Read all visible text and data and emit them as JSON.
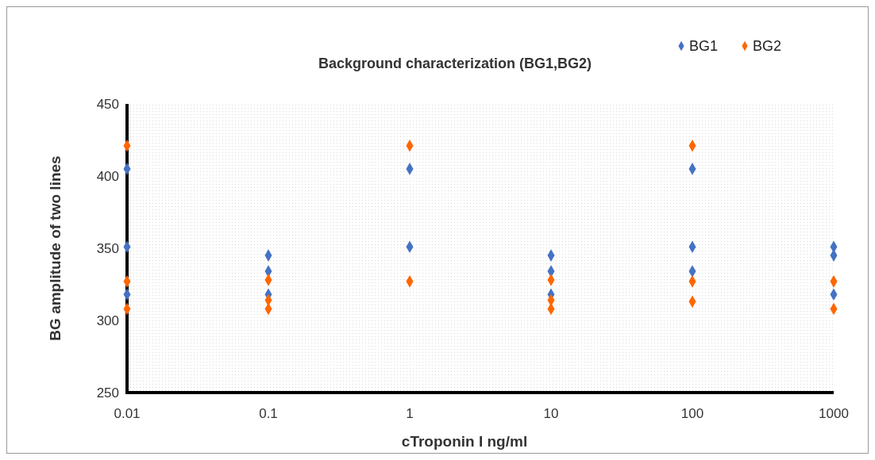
{
  "chart_data": {
    "type": "scatter",
    "title": "Background characterization (BG1,BG2)",
    "xlabel": "cTroponin I ng/ml",
    "ylabel": "BG amplitude of two lines",
    "log": "x",
    "xlim": [
      0.01,
      1000
    ],
    "xticks": [
      0.01,
      0.1,
      1,
      10,
      100,
      1000
    ],
    "ylim": [
      250,
      450
    ],
    "yticks": [
      250,
      300,
      350,
      400,
      450
    ],
    "marker": "diamond",
    "legend": "top right",
    "grid": false,
    "series": [
      {
        "name": "BG1",
        "color": "#4472c4",
        "x": [
          0.01,
          0.01,
          0.01,
          0.1,
          0.1,
          0.1,
          1,
          1,
          10,
          10,
          10,
          100,
          100,
          100,
          1000,
          1000,
          1000
        ],
        "values": [
          405,
          351,
          318,
          345,
          334,
          318,
          405,
          351,
          345,
          334,
          318,
          405,
          351,
          334,
          351,
          345,
          318
        ]
      },
      {
        "name": "BG2",
        "color": "#ff6600",
        "x": [
          0.01,
          0.01,
          0.01,
          0.1,
          0.1,
          0.1,
          1,
          1,
          10,
          10,
          10,
          100,
          100,
          100,
          1000,
          1000
        ],
        "values": [
          421,
          327,
          308,
          328,
          314,
          308,
          421,
          327,
          328,
          314,
          308,
          421,
          327,
          313,
          327,
          308
        ]
      }
    ]
  }
}
